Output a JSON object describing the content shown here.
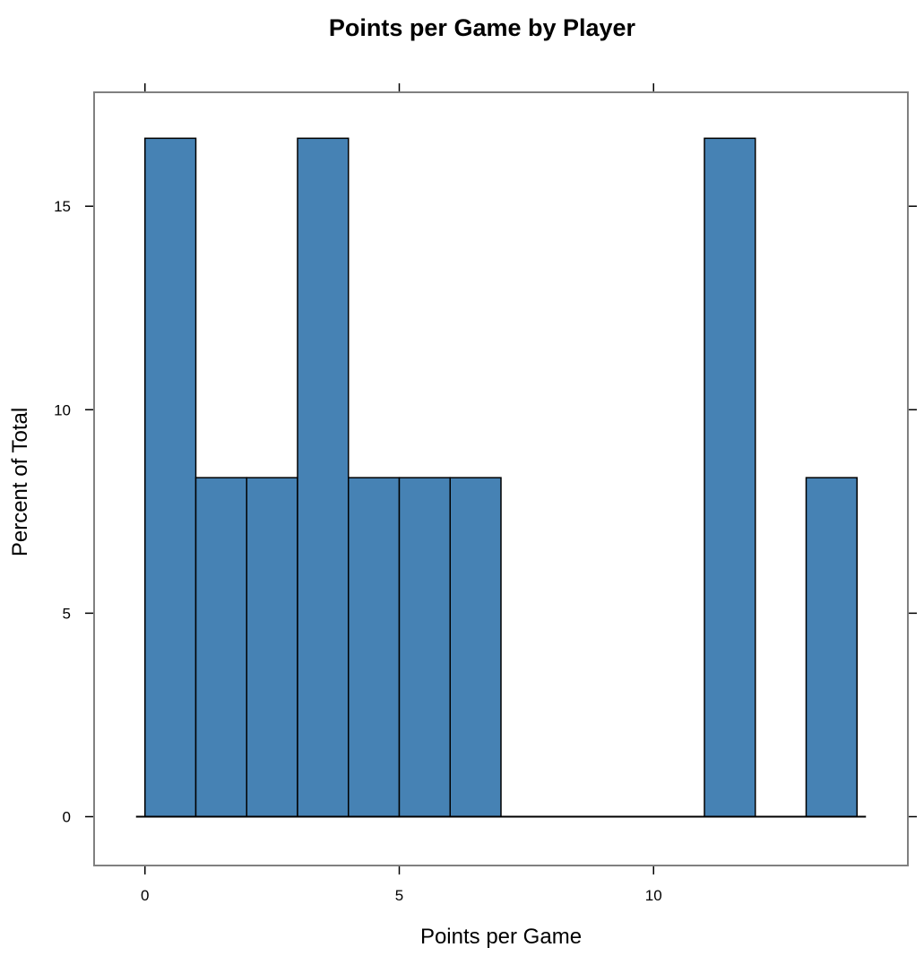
{
  "chart_data": {
    "type": "bar",
    "title": "Points per Game by Player",
    "xlabel": "Points per Game",
    "ylabel": "Percent of Total",
    "xlim": [
      -1,
      15
    ],
    "ylim": [
      -1.2,
      17.8
    ],
    "x_ticks": [
      0,
      5,
      10
    ],
    "y_ticks": [
      0,
      5,
      10,
      15
    ],
    "bins": [
      {
        "start": 0,
        "end": 1,
        "value": 16.67
      },
      {
        "start": 1,
        "end": 2,
        "value": 8.33
      },
      {
        "start": 2,
        "end": 3,
        "value": 8.33
      },
      {
        "start": 3,
        "end": 4,
        "value": 16.67
      },
      {
        "start": 4,
        "end": 5,
        "value": 8.33
      },
      {
        "start": 5,
        "end": 6,
        "value": 8.33
      },
      {
        "start": 6,
        "end": 7,
        "value": 8.33
      },
      {
        "start": 7,
        "end": 8,
        "value": 0
      },
      {
        "start": 8,
        "end": 9,
        "value": 0
      },
      {
        "start": 9,
        "end": 10,
        "value": 0
      },
      {
        "start": 10,
        "end": 11,
        "value": 0
      },
      {
        "start": 11,
        "end": 12,
        "value": 16.67
      },
      {
        "start": 12,
        "end": 13,
        "value": 0
      },
      {
        "start": 13,
        "end": 14,
        "value": 8.33
      }
    ],
    "bar_color": "#4682B4",
    "bar_edge_color": "#000000",
    "panel_border_color": "#808080",
    "grid": false,
    "legend": "none"
  }
}
